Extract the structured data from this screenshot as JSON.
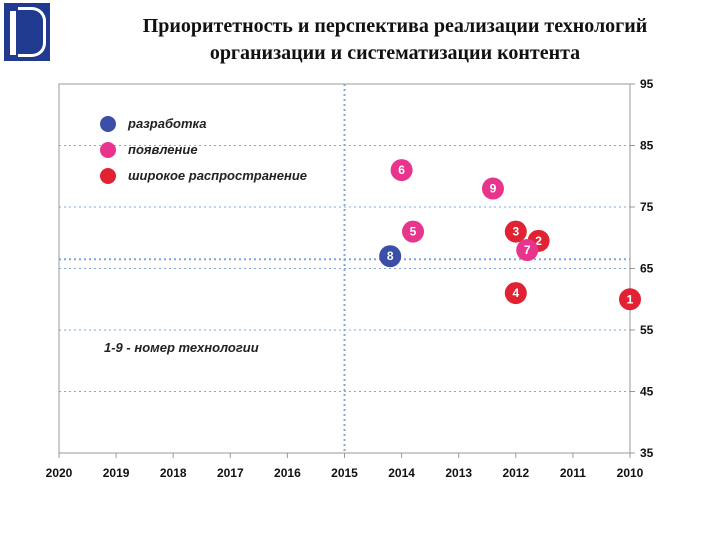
{
  "title": "Приоритетность и перспектива реализации технологий организации и систематизации контента",
  "title_lines": [
    "Приоритетность и перспектива реализации технологий",
    "организации и систематизации контента"
  ],
  "logo_letters": "HSE",
  "colors": {
    "develop": "#3b4ea8",
    "emerge": "#e8348c",
    "spread": "#e02233",
    "grid": "#7fa8d6",
    "axis": "#999999"
  },
  "chart_data": {
    "type": "scatter",
    "title": "Приоритетность и перспектива реализации технологий организации и систематизации контента",
    "x_ticks": [
      "2020",
      "2019",
      "2018",
      "2017",
      "2016",
      "2015",
      "2014",
      "2013",
      "2012",
      "2011",
      "2010"
    ],
    "y_ticks": [
      95,
      85,
      75,
      65,
      55,
      45,
      35
    ],
    "xlim": [
      2020,
      2010
    ],
    "ylim": [
      35,
      95
    ],
    "x_reversed": true,
    "y_axis_side": "right",
    "grid": true,
    "reference_lines": {
      "x": 2015,
      "y": 66.5
    },
    "legend": [
      {
        "name": "разработка",
        "color": "#3b4ea8"
      },
      {
        "name": "появление",
        "color": "#e8348c"
      },
      {
        "name": "широкое распространение",
        "color": "#e02233"
      }
    ],
    "legend_position": "top-left",
    "annotation": "1-9 - номер технологии",
    "points": [
      {
        "label": "6",
        "x": 2014.0,
        "y": 81,
        "stage": "появление",
        "color": "#e8348c"
      },
      {
        "label": "9",
        "x": 2012.4,
        "y": 78,
        "stage": "появление",
        "color": "#e8348c"
      },
      {
        "label": "5",
        "x": 2013.8,
        "y": 71,
        "stage": "появление",
        "color": "#e8348c"
      },
      {
        "label": "3",
        "x": 2012.0,
        "y": 71,
        "stage": "широкое распространение",
        "color": "#e02233"
      },
      {
        "label": "2",
        "x": 2011.6,
        "y": 69.5,
        "stage": "широкое распространение",
        "color": "#e02233"
      },
      {
        "label": "7",
        "x": 2011.8,
        "y": 68,
        "stage": "появление",
        "color": "#e8348c"
      },
      {
        "label": "8",
        "x": 2014.2,
        "y": 67,
        "stage": "разработка",
        "color": "#3b4ea8"
      },
      {
        "label": "4",
        "x": 2012.0,
        "y": 61,
        "stage": "широкое распространение",
        "color": "#e02233"
      },
      {
        "label": "1",
        "x": 2010.0,
        "y": 60,
        "stage": "широкое распространение",
        "color": "#e02233"
      }
    ]
  }
}
